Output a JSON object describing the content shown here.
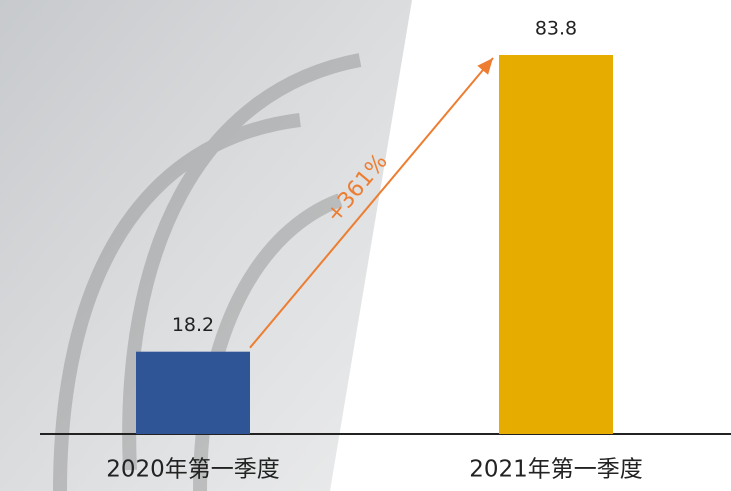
{
  "chart_data": {
    "type": "bar",
    "categories": [
      "2020年第一季度",
      "2021年第一季度"
    ],
    "values": [
      18.2,
      83.8
    ],
    "colors": [
      "#2f5597",
      "#e6ac00"
    ],
    "annotation": "+361%",
    "annotation_color": "#ed7d31"
  }
}
